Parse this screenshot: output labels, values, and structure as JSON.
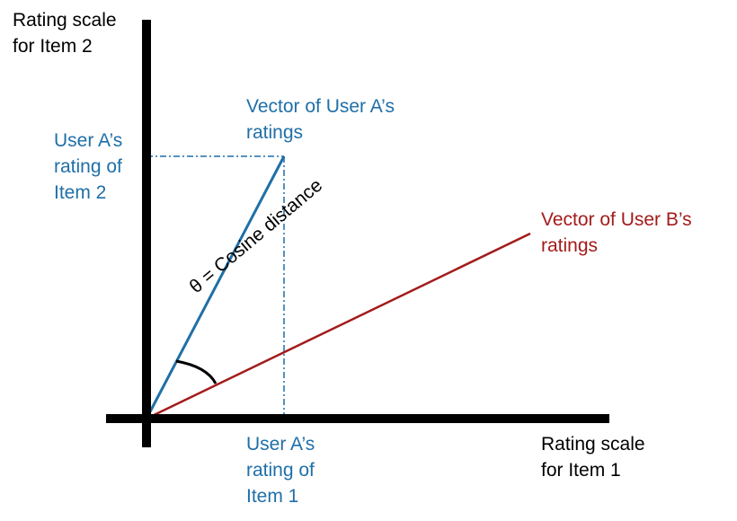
{
  "y_axis_label": {
    "line1": "Rating scale",
    "line2": "for Item 2"
  },
  "x_axis_label": {
    "line1": "Rating scale",
    "line2": "for Item 1"
  },
  "vector_a_label": {
    "line1": "Vector of User A’s",
    "line2": "ratings"
  },
  "vector_b_label": {
    "line1": "Vector of User B’s",
    "line2": "ratings"
  },
  "a_item2_label": {
    "line1": "User A’s",
    "line2": "rating of",
    "line3": "Item 2"
  },
  "a_item1_label": {
    "line1": "User A’s",
    "line2": "rating of",
    "line3": "Item 1"
  },
  "angle_label": "θ = Cosine distance",
  "colors": {
    "axis": "#000000",
    "vector_a": "#1f6fa8",
    "vector_b": "#a31b1b"
  }
}
